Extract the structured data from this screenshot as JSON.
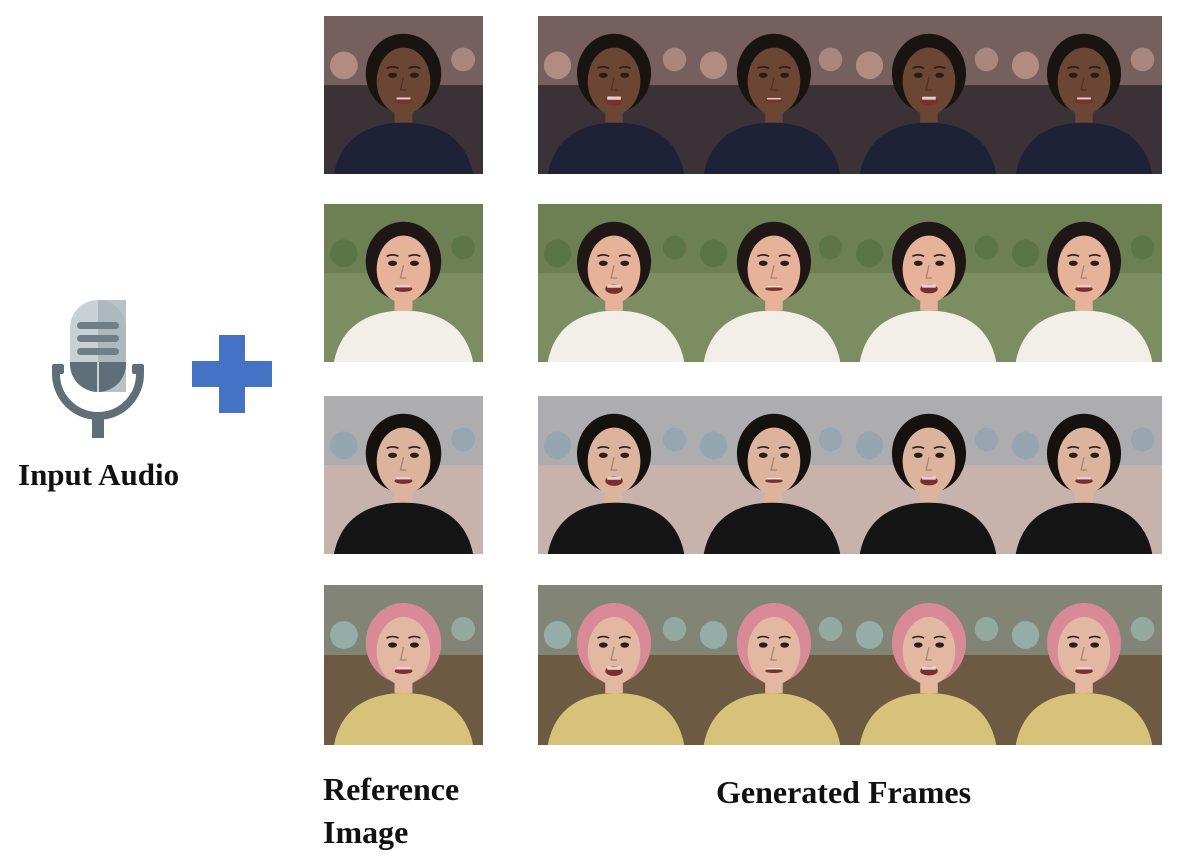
{
  "labels": {
    "input_audio": "Input Audio",
    "reference_image": "Reference Image",
    "generated_frames": "Generated Frames"
  },
  "icons": {
    "microphone": "microphone-icon",
    "plus": "plus-icon"
  },
  "colors": {
    "plus_blue": "#4472C4",
    "mic_gray": "#5f6f78",
    "mic_light": "#c9d1d5"
  },
  "rows": [
    {
      "subject": "man-dark-shirt",
      "bg": "#3a3236",
      "skin": "#6b4634",
      "hair": "#1a1411",
      "shirt": "#1f2236",
      "accent": "#e9b8a6"
    },
    {
      "subject": "woman-long-hair",
      "bg": "#7d8d62",
      "skin": "#e6b29a",
      "hair": "#1e1716",
      "shirt": "#f2efe9",
      "accent": "#4c6a3a"
    },
    {
      "subject": "young-man-black-shirt",
      "bg": "#c7b3ac",
      "skin": "#dcb49e",
      "hair": "#15110f",
      "shirt": "#151515",
      "accent": "#7fa0b4"
    },
    {
      "subject": "older-woman-pink-hair",
      "bg": "#6e5a42",
      "skin": "#e2b8a2",
      "hair": "#d88b97",
      "shirt": "#d7c27a",
      "accent": "#a8d6d8"
    }
  ]
}
